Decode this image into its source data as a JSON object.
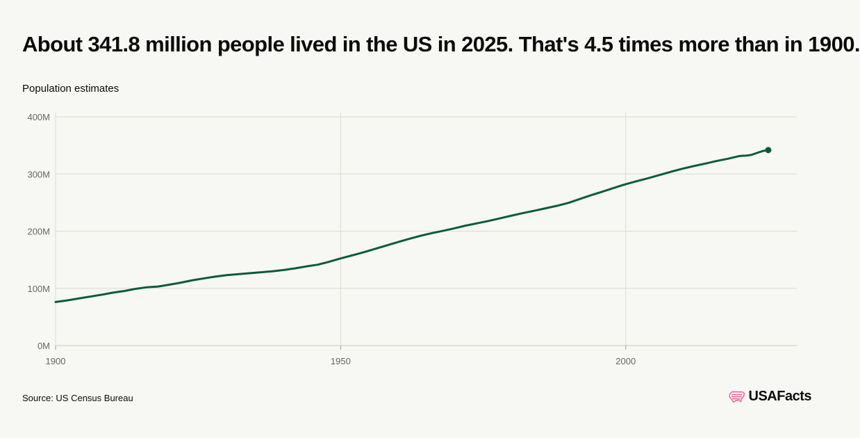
{
  "title": "About 341.8 million people lived in the US in 2025. That's 4.5 times more than in 1900.",
  "subtitle": "Population estimates",
  "source": "Source: US Census Bureau",
  "brand": {
    "name": "USAFacts",
    "icon": "us-flag-map-icon",
    "icon_color": "#e8619a"
  },
  "colors": {
    "line": "#0b5a3e",
    "grid": "#dcdcd6",
    "background": "#f7f7f3"
  },
  "chart_data": {
    "type": "line",
    "title": "",
    "xlabel": "",
    "ylabel": "",
    "xlim": [
      1900,
      2030
    ],
    "ylim": [
      0,
      400
    ],
    "y_unit": "M",
    "x_ticks": [
      {
        "value": 1900,
        "label": "1900"
      },
      {
        "value": 1950,
        "label": "1950"
      },
      {
        "value": 2000,
        "label": "2000"
      }
    ],
    "y_ticks": [
      {
        "value": 0,
        "label": "0M"
      },
      {
        "value": 100,
        "label": "100M"
      },
      {
        "value": 200,
        "label": "200M"
      },
      {
        "value": 300,
        "label": "300M"
      },
      {
        "value": 400,
        "label": "400M"
      }
    ],
    "grid": true,
    "end_marker": true,
    "series": [
      {
        "name": "",
        "x": [
          1900,
          1902,
          1904,
          1906,
          1908,
          1910,
          1912,
          1914,
          1916,
          1918,
          1920,
          1922,
          1924,
          1926,
          1928,
          1930,
          1932,
          1934,
          1936,
          1938,
          1940,
          1942,
          1944,
          1946,
          1948,
          1950,
          1952,
          1954,
          1956,
          1958,
          1960,
          1962,
          1964,
          1966,
          1968,
          1970,
          1972,
          1974,
          1976,
          1978,
          1980,
          1982,
          1984,
          1986,
          1988,
          1990,
          1992,
          1994,
          1996,
          1998,
          2000,
          2002,
          2004,
          2006,
          2008,
          2010,
          2012,
          2014,
          2016,
          2018,
          2020,
          2021,
          2022,
          2023,
          2024,
          2025
        ],
        "values": [
          76.1,
          78.9,
          82.2,
          85.5,
          88.7,
          92.4,
          95.3,
          99.1,
          101.9,
          103.2,
          106.5,
          110.0,
          114.1,
          117.4,
          120.5,
          123.1,
          124.8,
          126.4,
          128.1,
          129.8,
          132.1,
          134.9,
          138.4,
          141.4,
          146.6,
          152.3,
          157.6,
          163.0,
          168.9,
          174.9,
          180.7,
          186.5,
          191.9,
          196.6,
          200.7,
          205.1,
          209.9,
          213.9,
          218.0,
          222.6,
          227.2,
          231.7,
          235.8,
          240.1,
          244.5,
          249.6,
          256.5,
          263.1,
          269.4,
          275.9,
          282.2,
          287.6,
          292.8,
          298.4,
          304.1,
          309.3,
          314.0,
          318.3,
          322.9,
          326.8,
          331.5,
          332.0,
          333.3,
          336.8,
          340.1,
          341.8
        ]
      }
    ]
  }
}
